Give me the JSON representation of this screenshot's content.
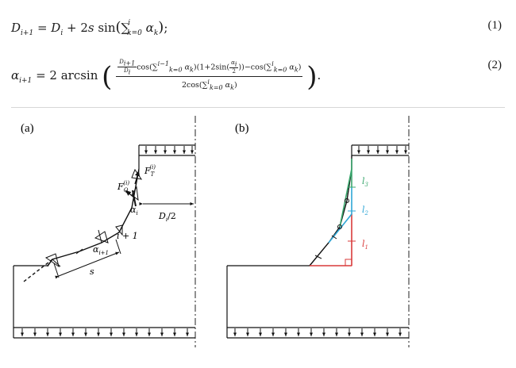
{
  "equations": [
    {
      "number": "(1)",
      "lhs": "D",
      "lhs_sub": "i+1",
      "text": "= D_i + 2s sin(Σ_{k=0}^{i} α_k);"
    },
    {
      "number": "(2)",
      "lhs": "α",
      "lhs_sub": "i+1",
      "text": "= 2 arcsin( [ (D_{i+1}/D_i) cos(Σ_{k=0}^{i−1} α_k)(1+2sin(α_i/2)) − cos(Σ_{k=0}^{i} α_k) ] / [ 2cos(Σ_{k=0}^{i} α_k) ] )."
    }
  ],
  "figure": {
    "panel_a": {
      "label": "(a)",
      "annotations": {
        "force_q": "F",
        "force_q_sub": "Q",
        "force_q_sup": "(i)",
        "force_t": "F",
        "force_t_sub": "T",
        "force_t_sup": "(i)",
        "alpha_i": "α",
        "alpha_i_sub": "i",
        "alpha_i1": "α",
        "alpha_i1_sub": "i+1",
        "node_i1": "i + 1",
        "step": "s",
        "diameter_half": "D",
        "diameter_half_sub": "i",
        "diameter_half_tail": "/2"
      }
    },
    "panel_b": {
      "label": "(b)",
      "segments": [
        {
          "label": "l",
          "sub": "3",
          "color": "#3aa76d"
        },
        {
          "label": "l",
          "sub": "2",
          "color": "#2ea6d6"
        },
        {
          "label": "l",
          "sub": "1",
          "color": "#d93a3a"
        }
      ]
    }
  }
}
